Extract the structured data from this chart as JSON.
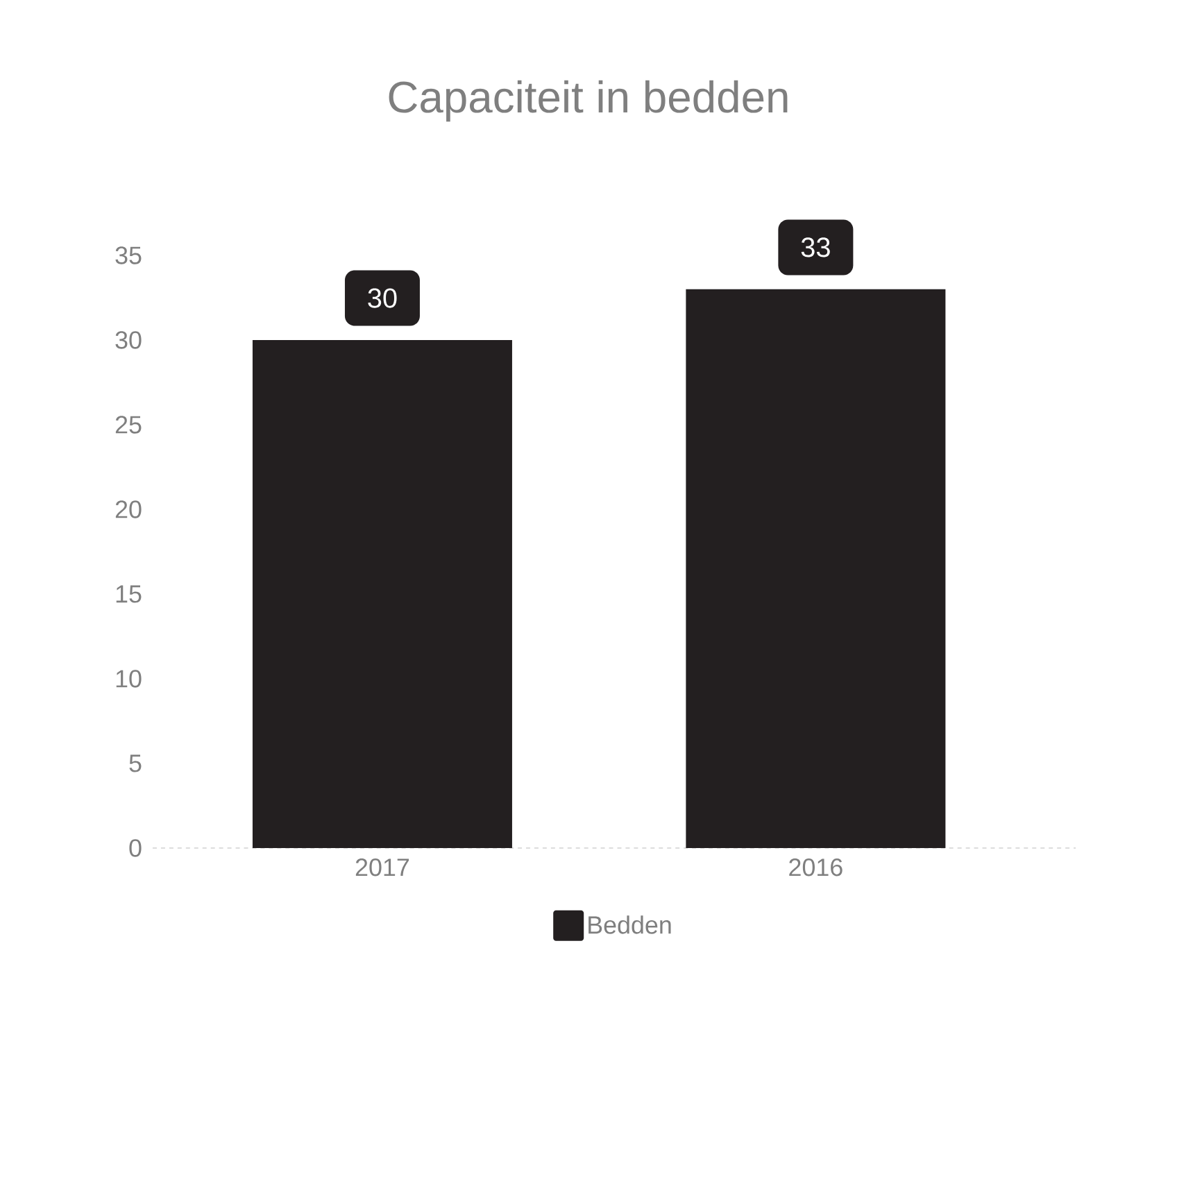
{
  "chart_data": {
    "type": "bar",
    "title": "Capaciteit in bedden",
    "categories": [
      "2017",
      "2016"
    ],
    "series": [
      {
        "name": "Bedden",
        "color": "#231f20",
        "values": [
          30,
          33
        ]
      }
    ],
    "ylim": [
      0,
      35
    ],
    "yticks": [
      0,
      5,
      10,
      15,
      20,
      25,
      30,
      35
    ],
    "legend": "bottom",
    "data_labels": true
  }
}
